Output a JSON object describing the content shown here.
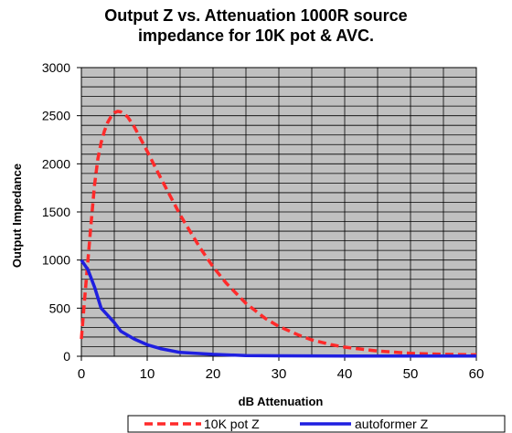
{
  "chart_data": {
    "type": "line",
    "title": [
      "Output Z vs. Attenuation 1000R source",
      "impedance for 10K pot & AVC."
    ],
    "xlabel": "dB Attenuation",
    "ylabel": "Output Impedance",
    "xlim": [
      0,
      60
    ],
    "ylim": [
      0,
      3000
    ],
    "x_ticks": [
      0,
      10,
      20,
      30,
      40,
      50,
      60
    ],
    "y_ticks": [
      0,
      500,
      1000,
      1500,
      2000,
      2500,
      3000
    ],
    "grid": true,
    "legend": "bottom",
    "plot_background": "#c0c0c0",
    "series": [
      {
        "name": "10K pot Z",
        "color": "#ff2a2a",
        "dash": "dashed",
        "points": [
          [
            0,
            180
          ],
          [
            0.5,
            600
          ],
          [
            1,
            1000
          ],
          [
            1.5,
            1400
          ],
          [
            2,
            1780
          ],
          [
            2.5,
            2050
          ],
          [
            3,
            2220
          ],
          [
            3.5,
            2340
          ],
          [
            4,
            2430
          ],
          [
            4.5,
            2490
          ],
          [
            5,
            2530
          ],
          [
            5.5,
            2545
          ],
          [
            6,
            2540
          ],
          [
            7,
            2490
          ],
          [
            8,
            2390
          ],
          [
            9,
            2260
          ],
          [
            10,
            2130
          ],
          [
            12,
            1860
          ],
          [
            15,
            1470
          ],
          [
            18,
            1130
          ],
          [
            20,
            930
          ],
          [
            22,
            760
          ],
          [
            25,
            550
          ],
          [
            28,
            390
          ],
          [
            30,
            310
          ],
          [
            33,
            220
          ],
          [
            35,
            170
          ],
          [
            38,
            120
          ],
          [
            40,
            95
          ],
          [
            43,
            70
          ],
          [
            45,
            55
          ],
          [
            48,
            40
          ],
          [
            50,
            30
          ],
          [
            55,
            20
          ],
          [
            60,
            15
          ]
        ]
      },
      {
        "name": "autoformer Z",
        "color": "#1f1fe0",
        "dash": "solid",
        "points": [
          [
            0,
            1000
          ],
          [
            1,
            900
          ],
          [
            2,
            720
          ],
          [
            3,
            500
          ],
          [
            5,
            350
          ],
          [
            6,
            260
          ],
          [
            8,
            180
          ],
          [
            10,
            120
          ],
          [
            12,
            80
          ],
          [
            15,
            40
          ],
          [
            20,
            20
          ],
          [
            25,
            8
          ],
          [
            30,
            5
          ],
          [
            40,
            3
          ],
          [
            50,
            2
          ],
          [
            60,
            2
          ]
        ]
      }
    ]
  }
}
